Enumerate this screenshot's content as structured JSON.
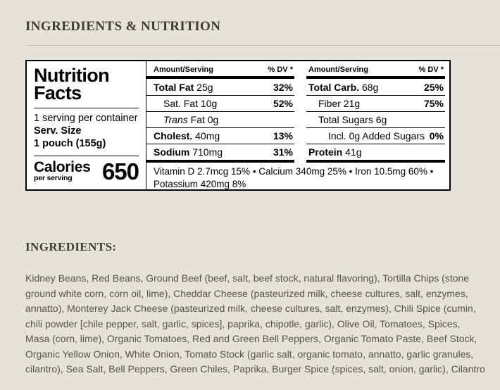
{
  "page": {
    "section_title": "INGREDIENTS & NUTRITION"
  },
  "colors": {
    "page_background": "#e5e2da",
    "heading_text": "#3f3a35",
    "body_text": "#57524b",
    "divider": "#c8c3ba",
    "label_background": "#ffffff",
    "label_ink": "#000000"
  },
  "nutrition_label": {
    "title_line1": "Nutrition",
    "title_line2": "Facts",
    "servings_per_container": "1 serving per container",
    "serving_size_label": "Serv. Size",
    "serving_size_value": "1 pouch (155g)",
    "calories_label": "Calories",
    "calories_sublabel": "per serving",
    "calories_value": "650",
    "columns": [
      {
        "header_amount": "Amount/Serving",
        "header_dv": "% DV *",
        "rows": [
          {
            "name": "Total Fat",
            "value": "25g",
            "dv": "32%",
            "bold": true,
            "indent": 0,
            "italic": ""
          },
          {
            "name": "Sat. Fat",
            "value": "10g",
            "dv": "52%",
            "bold": false,
            "indent": 1,
            "italic": ""
          },
          {
            "name": "Fat",
            "value": "0g",
            "dv": "",
            "bold": false,
            "indent": 1,
            "italic": "Trans"
          },
          {
            "name": "Cholest.",
            "value": "40mg",
            "dv": "13%",
            "bold": true,
            "indent": 0,
            "italic": ""
          },
          {
            "name": "Sodium",
            "value": "710mg",
            "dv": "31%",
            "bold": true,
            "indent": 0,
            "italic": ""
          }
        ]
      },
      {
        "header_amount": "Amount/Serving",
        "header_dv": "% DV *",
        "rows": [
          {
            "name": "Total Carb.",
            "value": "68g",
            "dv": "25%",
            "bold": true,
            "indent": 0,
            "italic": ""
          },
          {
            "name": "Fiber",
            "value": "21g",
            "dv": "75%",
            "bold": false,
            "indent": 1,
            "italic": ""
          },
          {
            "name": "Total Sugars",
            "value": "6g",
            "dv": "",
            "bold": false,
            "indent": 1,
            "italic": ""
          },
          {
            "name": "Incl. 0g Added Sugars",
            "value": "",
            "dv": "0%",
            "bold": false,
            "indent": 2,
            "italic": ""
          },
          {
            "name": "Protein",
            "value": "41g",
            "dv": "",
            "bold": true,
            "indent": 0,
            "italic": ""
          }
        ]
      }
    ],
    "micronutrients": "Vitamin D 2.7mcg 15% • Calcium 340mg 25% • Iron 10.5mg 60% • Potassium 420mg 8%"
  },
  "ingredients": {
    "heading": "INGREDIENTS:",
    "text": "Kidney Beans, Red Beans, Ground Beef (beef, salt, beef stock, natural flavoring), Tortilla Chips (stone ground white corn, corn oil, lime), Cheddar Cheese (pasteurized milk, cheese cultures, salt, enzymes, annatto), Monterey Jack Cheese (pasteurized milk, cheese cultures, salt, enzymes), Chili Spice (cumin, chili powder [chile pepper, salt, garlic, spices], paprika, chipotle, garlic), Olive Oil, Tomatoes, Spices, Masa (corn, lime), Organic Tomatoes, Red and Green Bell Peppers, Organic Tomato Paste, Beef Stock, Organic Yellow Onion, White Onion, Tomato Stock (garlic salt, organic tomato, annatto, garlic granules, cilantro), Sea Salt, Bell Peppers, Green Chiles, Paprika, Burger Spice (spices, salt, onion, garlic), Cilantro"
  }
}
